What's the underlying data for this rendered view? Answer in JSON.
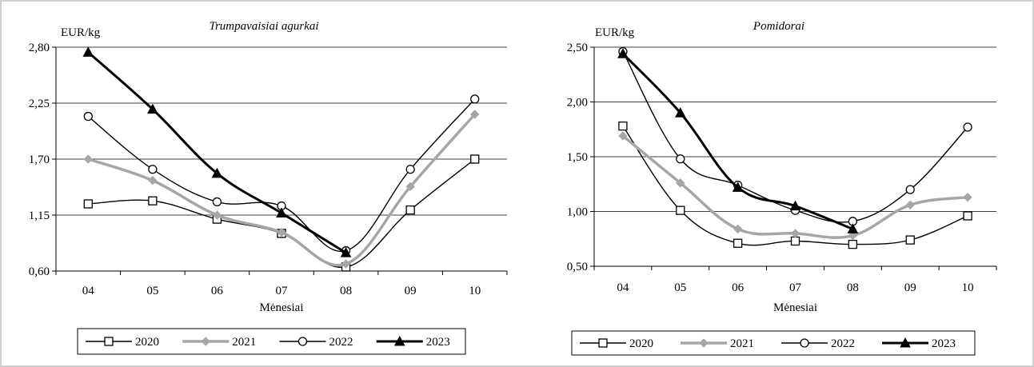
{
  "chart_data": [
    {
      "type": "line",
      "title": "Trumpavaisiai agurkai",
      "ylabel": "EUR/kg",
      "xlabel": "Mėnesiai",
      "categories": [
        "04",
        "05",
        "06",
        "07",
        "08",
        "09",
        "10"
      ],
      "yticks": [
        "0,60",
        "1,15",
        "1,70",
        "2,25",
        "2,80"
      ],
      "ylim": [
        0.6,
        2.8
      ],
      "grid": true,
      "legend_position": "bottom",
      "series": [
        {
          "name": "2020",
          "values": [
            1.26,
            1.29,
            1.11,
            0.97,
            0.64,
            1.2,
            1.7
          ],
          "color": "#000000",
          "marker": "square"
        },
        {
          "name": "2021",
          "values": [
            1.7,
            1.49,
            1.15,
            0.98,
            0.67,
            1.43,
            2.14
          ],
          "color": "#a6a6a6",
          "marker": "diamond"
        },
        {
          "name": "2022",
          "values": [
            2.12,
            1.6,
            1.28,
            1.24,
            0.8,
            1.6,
            2.29
          ],
          "color": "#000000",
          "marker": "circle"
        },
        {
          "name": "2023",
          "values": [
            2.75,
            2.19,
            1.56,
            1.17,
            0.78,
            null,
            null
          ],
          "color": "#000000",
          "marker": "triangle"
        }
      ]
    },
    {
      "type": "line",
      "title": "Pomidorai",
      "ylabel": "EUR/kg",
      "xlabel": "Mėnesiai",
      "categories": [
        "04",
        "05",
        "06",
        "07",
        "08",
        "09",
        "10"
      ],
      "yticks": [
        "0,50",
        "1,00",
        "1,50",
        "2,00",
        "2,50"
      ],
      "ylim": [
        0.5,
        2.5
      ],
      "grid": true,
      "legend_position": "bottom",
      "series": [
        {
          "name": "2020",
          "values": [
            1.78,
            1.01,
            0.71,
            0.73,
            0.7,
            0.74,
            0.96
          ],
          "color": "#000000",
          "marker": "square"
        },
        {
          "name": "2021",
          "values": [
            1.69,
            1.26,
            0.84,
            0.8,
            0.78,
            1.06,
            1.13
          ],
          "color": "#a6a6a6",
          "marker": "diamond"
        },
        {
          "name": "2022",
          "values": [
            2.46,
            1.48,
            1.24,
            1.01,
            0.91,
            1.2,
            1.77
          ],
          "color": "#000000",
          "marker": "circle"
        },
        {
          "name": "2023",
          "values": [
            2.44,
            1.9,
            1.22,
            1.05,
            0.84,
            null,
            null
          ],
          "color": "#000000",
          "marker": "triangle"
        }
      ]
    }
  ]
}
